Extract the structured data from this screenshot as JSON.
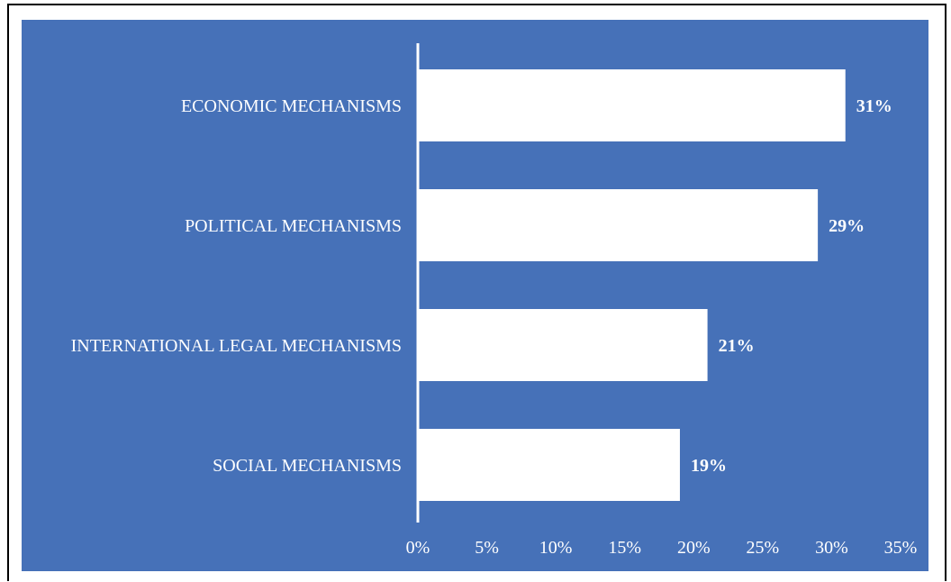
{
  "chart_data": {
    "type": "bar",
    "orientation": "horizontal",
    "categories": [
      "ECONOMIC MECHANISMS",
      "POLITICAL MECHANISMS",
      "INTERNATIONAL LEGAL MECHANISMS",
      "SOCIAL MECHANISMS"
    ],
    "values": [
      31,
      29,
      21,
      19
    ],
    "value_labels": [
      "31%",
      "29%",
      "21%",
      "19%"
    ],
    "xlim": [
      0,
      35
    ],
    "x_ticks": [
      0,
      5,
      10,
      15,
      20,
      25,
      30,
      35
    ],
    "x_tick_labels": [
      "0%",
      "5%",
      "10%",
      "15%",
      "20%",
      "25%",
      "30%",
      "35%"
    ],
    "grid": false,
    "colors": {
      "background": "#4671b8",
      "bar": "#ffffff",
      "text": "#ffffff"
    }
  }
}
